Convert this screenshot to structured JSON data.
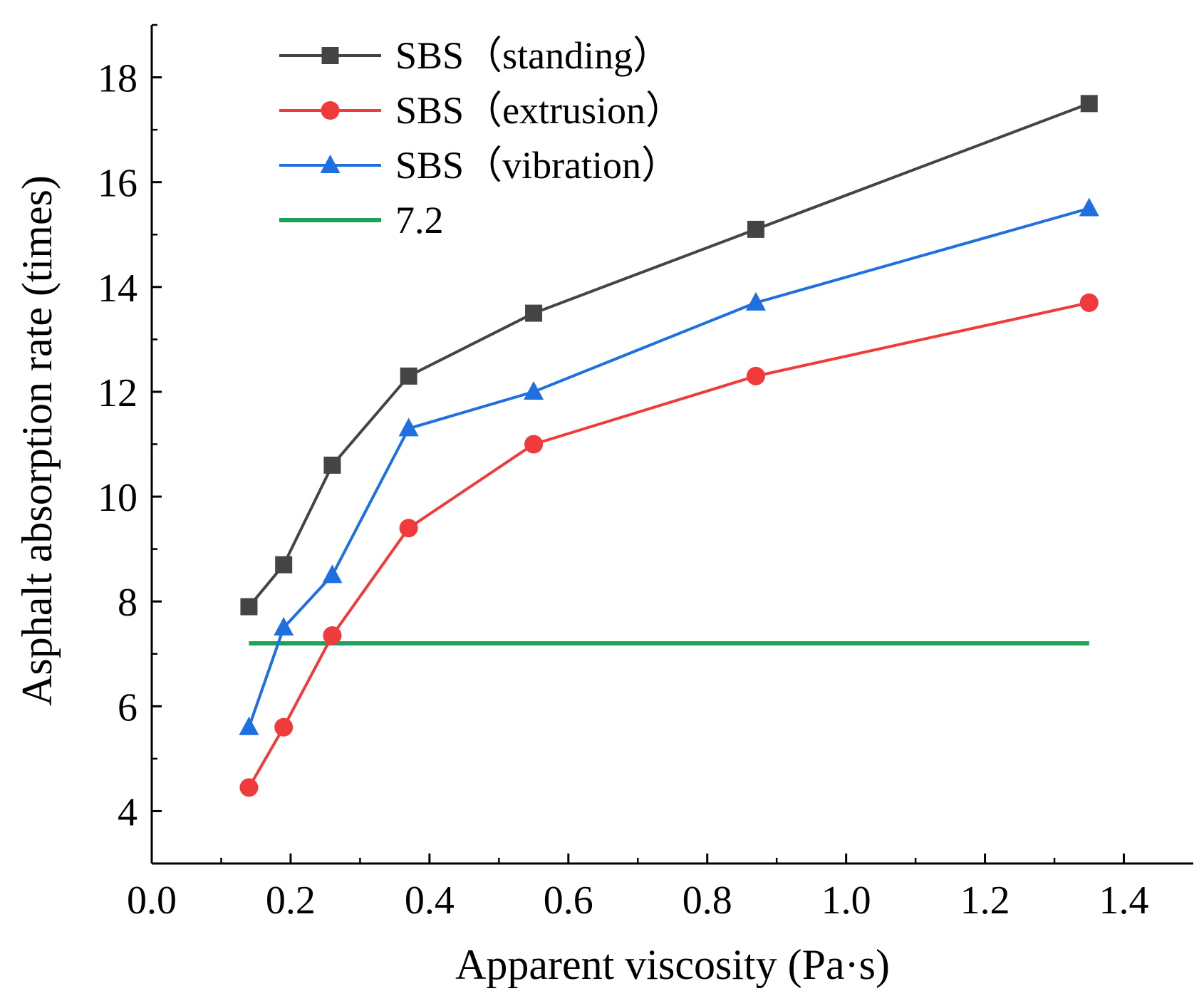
{
  "chart_data": {
    "type": "line",
    "title": "",
    "xlabel": "Apparent viscosity (Pa·s)",
    "ylabel": "Asphalt absorption rate (times)",
    "xlim": [
      0.0,
      1.5
    ],
    "ylim": [
      3.0,
      19.0
    ],
    "x_ticks": [
      0.0,
      0.2,
      0.4,
      0.6,
      0.8,
      1.0,
      1.2,
      1.4
    ],
    "x_tick_labels": [
      "0.0",
      "0.2",
      "0.4",
      "0.6",
      "0.8",
      "1.0",
      "1.2",
      "1.4"
    ],
    "y_ticks": [
      4,
      6,
      8,
      10,
      12,
      14,
      16,
      18
    ],
    "y_tick_labels": [
      "4",
      "6",
      "8",
      "10",
      "12",
      "14",
      "16",
      "18"
    ],
    "grid": false,
    "legend_position": "top-left",
    "series": [
      {
        "name": "SBS（standing）",
        "color": "#444444",
        "marker": "square",
        "x": [
          0.14,
          0.19,
          0.26,
          0.37,
          0.55,
          0.87,
          1.35
        ],
        "y": [
          7.9,
          8.7,
          10.6,
          12.3,
          13.5,
          15.1,
          17.5
        ]
      },
      {
        "name": "SBS（extrusion）",
        "color": "#ef3b3b",
        "marker": "circle",
        "x": [
          0.14,
          0.19,
          0.26,
          0.37,
          0.55,
          0.87,
          1.35
        ],
        "y": [
          4.45,
          5.6,
          7.35,
          9.4,
          11.0,
          12.3,
          13.7
        ]
      },
      {
        "name": "SBS（vibration）",
        "color": "#1f6fe0",
        "marker": "triangle",
        "x": [
          0.14,
          0.19,
          0.26,
          0.37,
          0.55,
          0.87,
          1.35
        ],
        "y": [
          5.6,
          7.5,
          8.5,
          11.3,
          12.0,
          13.7,
          15.5
        ]
      },
      {
        "name": "7.2",
        "color": "#1fa35a",
        "marker": "none",
        "x": [
          0.14,
          1.35
        ],
        "y": [
          7.2,
          7.2
        ]
      }
    ]
  }
}
